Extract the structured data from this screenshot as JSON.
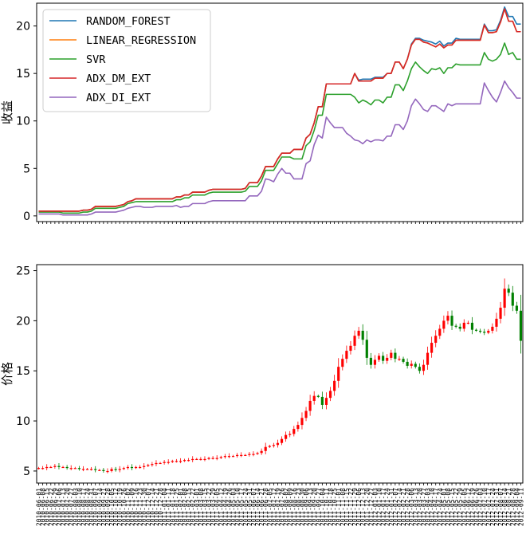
{
  "chart_data": [
    {
      "type": "line",
      "ylabel": "收益",
      "ylim": [
        -0.6,
        22.4
      ],
      "yticks": [
        0,
        5,
        10,
        15,
        20
      ],
      "grid": false,
      "legend_position": "top-left",
      "x_count": 120,
      "series": [
        {
          "name": "RANDOM_FOREST",
          "color": "#1f77b4",
          "values": [
            0.5,
            0.5,
            0.5,
            0.5,
            0.5,
            0.5,
            0.5,
            0.5,
            0.5,
            0.5,
            0.5,
            0.6,
            0.6,
            0.7,
            1.0,
            1.0,
            1.0,
            1.0,
            1.0,
            1.0,
            1.1,
            1.2,
            1.5,
            1.6,
            1.8,
            1.8,
            1.8,
            1.8,
            1.8,
            1.8,
            1.8,
            1.8,
            1.8,
            1.8,
            2.0,
            2.0,
            2.2,
            2.2,
            2.5,
            2.5,
            2.5,
            2.5,
            2.7,
            2.8,
            2.8,
            2.8,
            2.8,
            2.8,
            2.8,
            2.8,
            2.8,
            2.9,
            3.5,
            3.5,
            3.5,
            4.2,
            5.2,
            5.2,
            5.2,
            6.0,
            6.6,
            6.6,
            6.6,
            7.0,
            7.0,
            7.0,
            8.2,
            8.6,
            9.8,
            11.5,
            11.5,
            13.9,
            13.9,
            13.9,
            13.9,
            13.9,
            13.9,
            13.9,
            15.0,
            14.3,
            14.4,
            14.4,
            14.4,
            14.6,
            14.6,
            14.6,
            15.0,
            15.0,
            16.2,
            16.2,
            15.5,
            16.5,
            18.1,
            18.7,
            18.7,
            18.5,
            18.4,
            18.3,
            18.1,
            18.4,
            17.9,
            18.2,
            18.2,
            18.7,
            18.6,
            18.6,
            18.6,
            18.6,
            18.6,
            18.6,
            20.2,
            19.5,
            19.5,
            19.6,
            20.6,
            22.0,
            21.0,
            21.0,
            20.2,
            20.2
          ]
        },
        {
          "name": "LINEAR_REGRESSION",
          "color": "#ff7f0e",
          "values": [
            0.5,
            0.5,
            0.5,
            0.5,
            0.5,
            0.5,
            0.5,
            0.5,
            0.5,
            0.5,
            0.5,
            0.6,
            0.6,
            0.7,
            1.0,
            1.0,
            1.0,
            1.0,
            1.0,
            1.0,
            1.1,
            1.2,
            1.5,
            1.6,
            1.8,
            1.8,
            1.8,
            1.8,
            1.8,
            1.8,
            1.8,
            1.8,
            1.8,
            1.8,
            2.0,
            2.0,
            2.2,
            2.2,
            2.5,
            2.5,
            2.5,
            2.5,
            2.7,
            2.8,
            2.8,
            2.8,
            2.8,
            2.8,
            2.8,
            2.8,
            2.8,
            2.9,
            3.5,
            3.5,
            3.5,
            4.2,
            5.2,
            5.2,
            5.2,
            6.0,
            6.6,
            6.6,
            6.6,
            7.0,
            7.0,
            7.0,
            8.2,
            8.6,
            9.8,
            11.5,
            11.5,
            13.9,
            13.9,
            13.9,
            13.9,
            13.9,
            13.9,
            13.9,
            15.0,
            14.2,
            14.2,
            14.2,
            14.2,
            14.5,
            14.5,
            14.5,
            15.0,
            15.0,
            16.2,
            16.2,
            15.5,
            16.5,
            18.0,
            18.6,
            18.6,
            18.3,
            18.2,
            18.0,
            17.8,
            18.1,
            17.7,
            18.0,
            18.0,
            18.5,
            18.5,
            18.5,
            18.5,
            18.5,
            18.5,
            18.5,
            20.1,
            19.3,
            19.3,
            19.4,
            20.4,
            21.8,
            20.5,
            20.5,
            19.4,
            19.4
          ]
        },
        {
          "name": "SVR",
          "color": "#2ca02c",
          "values": [
            0.4,
            0.4,
            0.4,
            0.4,
            0.4,
            0.4,
            0.3,
            0.3,
            0.3,
            0.3,
            0.3,
            0.4,
            0.4,
            0.5,
            0.8,
            0.8,
            0.8,
            0.8,
            0.8,
            0.8,
            0.9,
            1.0,
            1.3,
            1.4,
            1.5,
            1.5,
            1.5,
            1.5,
            1.5,
            1.5,
            1.5,
            1.5,
            1.5,
            1.5,
            1.7,
            1.7,
            1.9,
            1.9,
            2.2,
            2.2,
            2.2,
            2.2,
            2.4,
            2.5,
            2.5,
            2.5,
            2.5,
            2.5,
            2.5,
            2.5,
            2.5,
            2.6,
            3.1,
            3.1,
            3.1,
            3.7,
            4.8,
            4.8,
            4.8,
            5.5,
            6.2,
            6.2,
            6.2,
            6.0,
            6.0,
            6.0,
            7.4,
            7.8,
            9.0,
            10.6,
            10.6,
            12.8,
            12.8,
            12.8,
            12.8,
            12.8,
            12.8,
            12.8,
            12.5,
            11.9,
            12.2,
            12.0,
            11.7,
            12.2,
            12.2,
            11.9,
            12.5,
            12.5,
            13.8,
            13.8,
            13.2,
            14.2,
            15.5,
            16.2,
            15.7,
            15.3,
            15.0,
            15.5,
            15.4,
            15.6,
            15.0,
            15.6,
            15.6,
            16.0,
            15.9,
            15.9,
            15.9,
            15.9,
            15.9,
            15.9,
            17.2,
            16.5,
            16.3,
            16.5,
            17.0,
            18.2,
            17.0,
            17.2,
            16.5,
            16.5
          ]
        },
        {
          "name": "ADX_DM_EXT",
          "color": "#d62728",
          "values": [
            0.5,
            0.5,
            0.5,
            0.5,
            0.5,
            0.5,
            0.5,
            0.5,
            0.5,
            0.5,
            0.5,
            0.6,
            0.6,
            0.7,
            1.0,
            1.0,
            1.0,
            1.0,
            1.0,
            1.0,
            1.1,
            1.2,
            1.5,
            1.6,
            1.8,
            1.8,
            1.8,
            1.8,
            1.8,
            1.8,
            1.8,
            1.8,
            1.8,
            1.8,
            2.0,
            2.0,
            2.2,
            2.2,
            2.5,
            2.5,
            2.5,
            2.5,
            2.7,
            2.8,
            2.8,
            2.8,
            2.8,
            2.8,
            2.8,
            2.8,
            2.8,
            2.9,
            3.5,
            3.5,
            3.5,
            4.2,
            5.2,
            5.2,
            5.2,
            6.0,
            6.6,
            6.6,
            6.6,
            7.0,
            7.0,
            7.0,
            8.2,
            8.6,
            9.8,
            11.5,
            11.5,
            13.9,
            13.9,
            13.9,
            13.9,
            13.9,
            13.9,
            13.9,
            15.0,
            14.2,
            14.2,
            14.2,
            14.2,
            14.5,
            14.5,
            14.5,
            15.0,
            15.0,
            16.2,
            16.2,
            15.5,
            16.5,
            18.0,
            18.6,
            18.6,
            18.3,
            18.2,
            18.0,
            17.8,
            18.1,
            17.7,
            18.0,
            18.0,
            18.5,
            18.5,
            18.5,
            18.5,
            18.5,
            18.5,
            18.5,
            20.1,
            19.3,
            19.3,
            19.4,
            20.4,
            21.8,
            20.5,
            20.5,
            19.4,
            19.4
          ]
        },
        {
          "name": "ADX_DI_EXT",
          "color": "#9467bd",
          "values": [
            0.2,
            0.2,
            0.2,
            0.2,
            0.2,
            0.2,
            0.1,
            0.1,
            0.1,
            0.1,
            0.1,
            0.1,
            0.1,
            0.2,
            0.4,
            0.4,
            0.4,
            0.4,
            0.4,
            0.4,
            0.5,
            0.6,
            0.8,
            0.9,
            1.0,
            1.0,
            0.9,
            0.9,
            0.9,
            1.0,
            1.0,
            1.0,
            1.0,
            1.0,
            1.1,
            0.9,
            1.0,
            1.0,
            1.3,
            1.3,
            1.3,
            1.3,
            1.5,
            1.6,
            1.6,
            1.6,
            1.6,
            1.6,
            1.6,
            1.6,
            1.6,
            1.6,
            2.1,
            2.1,
            2.1,
            2.6,
            3.9,
            3.8,
            3.6,
            4.4,
            5.0,
            4.5,
            4.5,
            3.9,
            3.9,
            3.9,
            5.5,
            5.8,
            7.5,
            8.5,
            8.2,
            10.4,
            9.8,
            9.3,
            9.3,
            9.3,
            8.7,
            8.4,
            8.0,
            7.9,
            7.6,
            8.0,
            7.8,
            8.0,
            8.0,
            7.9,
            8.4,
            8.4,
            9.6,
            9.6,
            9.1,
            10.0,
            11.6,
            12.3,
            11.8,
            11.2,
            11.0,
            11.6,
            11.6,
            11.3,
            11.0,
            11.8,
            11.6,
            11.8,
            11.8,
            11.8,
            11.8,
            11.8,
            11.8,
            11.8,
            14.0,
            13.2,
            12.5,
            12.0,
            13.0,
            14.2,
            13.5,
            13.0,
            12.4,
            12.4
          ]
        }
      ]
    },
    {
      "type": "candlestick",
      "ylabel": "价格",
      "ylim": [
        3.8,
        25.6
      ],
      "yticks": [
        5,
        10,
        15,
        20,
        25
      ],
      "grid": false,
      "up_color": "#ff0000",
      "down_color": "#008000",
      "x_count": 120,
      "close": [
        5.3,
        5.3,
        5.4,
        5.4,
        5.5,
        5.4,
        5.4,
        5.3,
        5.3,
        5.3,
        5.2,
        5.2,
        5.2,
        5.2,
        5.1,
        5.1,
        5.0,
        5.0,
        5.2,
        5.1,
        5.2,
        5.3,
        5.4,
        5.3,
        5.4,
        5.4,
        5.5,
        5.6,
        5.7,
        5.8,
        5.8,
        5.9,
        5.9,
        6.0,
        6.0,
        6.0,
        6.1,
        6.1,
        6.2,
        6.2,
        6.2,
        6.2,
        6.3,
        6.3,
        6.3,
        6.4,
        6.5,
        6.5,
        6.5,
        6.6,
        6.6,
        6.6,
        6.7,
        6.7,
        6.8,
        7.0,
        7.4,
        7.5,
        7.6,
        7.8,
        8.2,
        8.6,
        8.7,
        9.2,
        9.6,
        10.3,
        11.0,
        12.0,
        12.5,
        12.4,
        11.6,
        12.3,
        13.0,
        14.0,
        15.4,
        16.2,
        17.0,
        17.5,
        18.5,
        19.0,
        18.1,
        16.3,
        15.6,
        16.1,
        16.5,
        16.0,
        16.3,
        16.8,
        16.2,
        16.2,
        15.9,
        15.5,
        15.7,
        15.4,
        15.0,
        15.6,
        16.8,
        17.8,
        18.5,
        19.2,
        20.0,
        20.5,
        19.5,
        19.4,
        19.2,
        19.8,
        19.8,
        19.1,
        19.0,
        18.9,
        18.8,
        19.0,
        19.4,
        20.2,
        21.3,
        23.2,
        22.8,
        21.5,
        21.0,
        18.0
      ]
    }
  ],
  "date_labels": [
    "2010-06-01",
    "2010-06-08",
    "2010-06-15",
    "2010-06-22",
    "2010-06-29",
    "2010-07-06",
    "2010-07-13",
    "2010-07-20",
    "2010-07-27",
    "2010-08-03",
    "2010-08-10",
    "2010-08-17",
    "2010-08-24",
    "2010-08-31",
    "2010-09-07",
    "2010-09-14",
    "2010-09-21",
    "2010-09-28",
    "2010-10-05",
    "2010-10-12",
    "2010-10-19",
    "2010-10-26",
    "2010-11-02",
    "2010-11-09",
    "2010-11-16",
    "2010-11-23",
    "2010-11-30",
    "2010-12-07",
    "2010-12-14",
    "2010-12-21",
    "2010-12-28",
    "2011-01-04",
    "2011-01-11",
    "2011-01-18",
    "2011-01-25",
    "2011-02-01",
    "2011-02-08",
    "2011-02-15",
    "2011-02-22",
    "2011-03-01",
    "2011-03-08",
    "2011-03-15",
    "2011-03-22",
    "2011-03-29",
    "2011-04-05",
    "2011-04-12",
    "2011-04-19",
    "2011-04-26",
    "2011-05-03",
    "2011-05-10",
    "2011-05-17",
    "2011-05-24",
    "2011-05-31",
    "2011-06-07",
    "2011-06-14",
    "2011-06-21",
    "2011-06-28",
    "2011-07-05",
    "2011-07-12",
    "2011-07-19",
    "2011-07-26",
    "2011-08-02",
    "2011-08-09",
    "2011-08-16",
    "2011-08-23",
    "2011-08-30",
    "2011-09-06",
    "2011-09-13",
    "2011-09-20",
    "2011-09-27",
    "2011-10-04",
    "2011-10-11",
    "2011-10-18",
    "2011-10-25",
    "2011-11-01",
    "2011-11-08",
    "2011-11-15",
    "2011-11-22",
    "2011-11-29",
    "2011-12-06",
    "2011-12-13",
    "2011-12-20",
    "2011-12-27",
    "2012-01-03",
    "2012-01-10",
    "2012-01-17",
    "2012-01-24",
    "2012-01-31",
    "2012-02-07",
    "2012-02-14",
    "2012-02-21",
    "2012-02-28",
    "2012-03-06",
    "2012-03-13",
    "2012-03-20",
    "2012-03-27",
    "2012-04-03",
    "2012-04-10",
    "2012-04-17",
    "2012-04-24",
    "2012-05-01",
    "2012-05-08",
    "2012-05-15",
    "2012-05-22",
    "2012-05-29",
    "2012-06-05",
    "2012-06-12",
    "2012-06-19",
    "2012-06-26",
    "2012-07-03",
    "2012-07-10",
    "2012-07-17",
    "2012-07-24",
    "2012-07-31",
    "2012-08-07",
    "2012-08-14",
    "2012-08-21",
    "2012-08-28",
    "2012-09-04",
    "2012-09-11"
  ]
}
